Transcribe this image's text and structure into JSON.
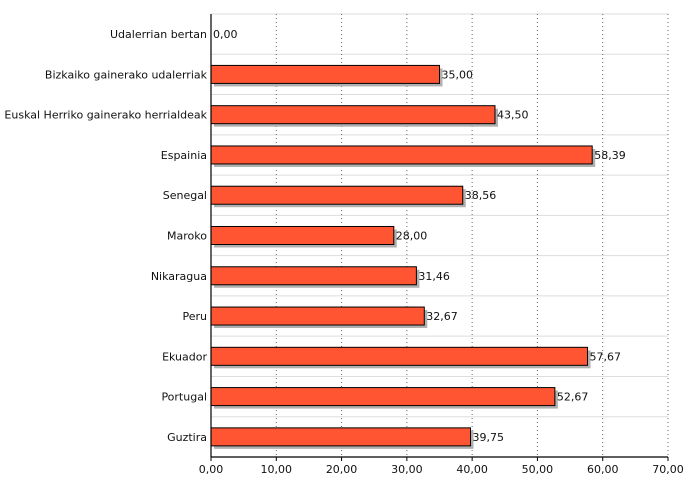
{
  "chart_data": {
    "type": "bar",
    "orientation": "horizontal",
    "categories": [
      "Udalerrian bertan",
      "Bizkaiko gainerako udalerriak",
      "Euskal Herriko gainerako herrialdeak",
      "Espainia",
      "Senegal",
      "Maroko",
      "Nikaragua",
      "Peru",
      "Ekuador",
      "Portugal",
      "Guztira"
    ],
    "values": [
      0.0,
      35.0,
      43.5,
      58.39,
      38.56,
      28.0,
      31.46,
      32.67,
      57.67,
      52.67,
      39.75
    ],
    "value_labels": [
      "0,00",
      "35,00",
      "43,50",
      "58,39",
      "38,56",
      "28,00",
      "31,46",
      "32,67",
      "57,67",
      "52,67",
      "39,75"
    ],
    "xlim": [
      0,
      70
    ],
    "x_ticks": [
      0,
      10,
      20,
      30,
      40,
      50,
      60,
      70
    ],
    "x_tick_labels": [
      "0,00",
      "10,00",
      "20,00",
      "30,00",
      "40,00",
      "50,00",
      "60,00",
      "70,00"
    ],
    "grid": "vertical-dotted",
    "legend": "none",
    "bar_color": "#ff5533",
    "bar_shadow_color": "#b0b0b0"
  }
}
